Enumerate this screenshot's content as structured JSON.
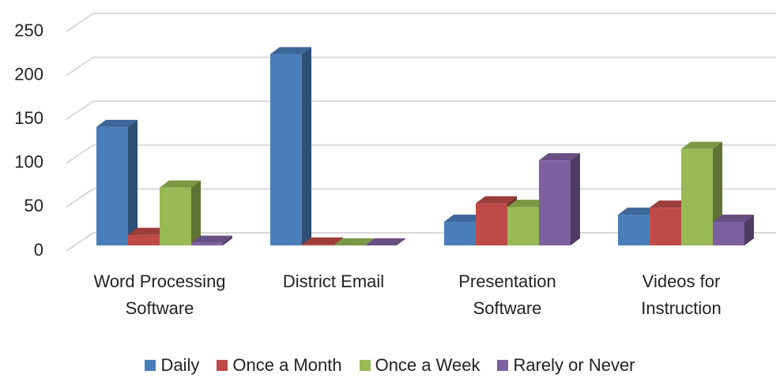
{
  "chart_data": {
    "type": "bar3d",
    "categories": [
      "Word Processing Software",
      "District Email",
      "Presentation Software",
      "Videos for Instruction"
    ],
    "series": [
      {
        "name": "Daily",
        "color": "#4a7ebb",
        "values": [
          135,
          218,
          27,
          35
        ]
      },
      {
        "name": "Once a Month",
        "color": "#be4b48",
        "values": [
          12,
          1,
          48,
          43
        ]
      },
      {
        "name": "Once a Week",
        "color": "#98b954",
        "values": [
          66,
          0,
          44,
          110
        ]
      },
      {
        "name": "Rarely or Never",
        "color": "#7d60a0",
        "values": [
          3,
          0,
          97,
          27
        ]
      }
    ],
    "ylim": [
      0,
      250
    ],
    "yticks": [
      0,
      50,
      100,
      150,
      200,
      250
    ],
    "grid": true,
    "legend": "bottom"
  }
}
